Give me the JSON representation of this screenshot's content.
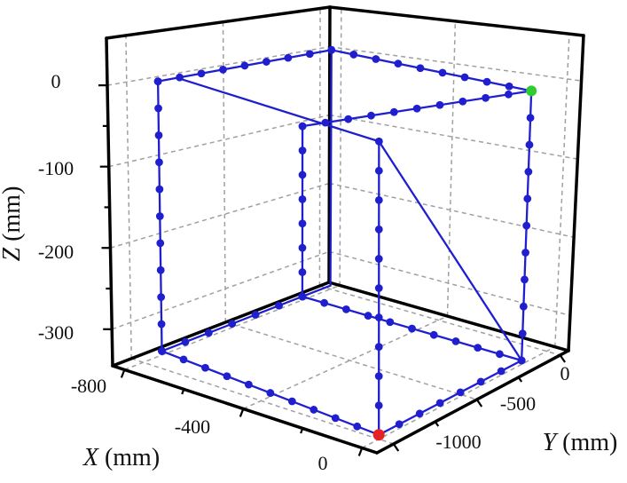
{
  "figure": {
    "background": "#ffffff",
    "kind": "3D trajectory measurement plot"
  },
  "chart_data": {
    "type": "line3d-scatter",
    "title": "",
    "axes": {
      "x": {
        "label_letter": "X",
        "label_unit": " (mm)",
        "range": [
          -840,
          50
        ],
        "major_ticks": [
          -800,
          -400,
          0
        ],
        "minor_ticks": [
          -600,
          -200
        ],
        "tick_labels": [
          "-800",
          "-400",
          "0"
        ]
      },
      "y": {
        "label_letter": "Y",
        "label_unit": " (mm)",
        "range": [
          -1100,
          50
        ],
        "major_ticks": [
          -1000,
          -500,
          0
        ],
        "minor_ticks": [
          -750,
          -250
        ],
        "tick_labels": [
          "-1000",
          "-500",
          "0"
        ]
      },
      "z": {
        "label_letter": "Z",
        "label_unit": " (mm)",
        "range": [
          -345,
          58
        ],
        "major_ticks": [
          0,
          -100,
          -200,
          -300
        ],
        "minor_ticks": [
          -50,
          -150,
          -250
        ],
        "tick_labels": [
          "0",
          "-100",
          "-200",
          "-300"
        ]
      }
    },
    "grid": {
      "show": true,
      "color": "#a0a0a0"
    },
    "box_color": "#000000",
    "series": {
      "name": "measured-trajectory",
      "color": "#1f1fd0",
      "marker_radius": 4.4,
      "segments": [
        {
          "points": [
            [
              -800,
              -900,
              0
            ],
            [
              -800,
              0,
              0
            ]
          ],
          "markers": true,
          "spacing": 25
        },
        {
          "points": [
            [
              -800,
              0,
              0
            ],
            [
              0,
              -150,
              0
            ]
          ],
          "markers": true,
          "spacing": 25
        },
        {
          "points": [
            [
              0,
              -150,
              0
            ],
            [
              -800,
              -150,
              -100
            ]
          ],
          "markers": true,
          "spacing": 26
        },
        {
          "points": [
            [
              -800,
              -150,
              -100
            ],
            [
              -800,
              -150,
              -340
            ]
          ],
          "markers": true,
          "spacing": 28
        },
        {
          "points": [
            [
              -800,
              -150,
              -340
            ],
            [
              0,
              -150,
              -340
            ]
          ],
          "markers": true,
          "spacing": 27
        },
        {
          "points": [
            [
              0,
              -150,
              -340
            ],
            [
              0,
              -150,
              0
            ]
          ],
          "markers": true,
          "spacing": 31
        },
        {
          "points": [
            [
              -800,
              -900,
              0
            ],
            [
              -800,
              -900,
              -340
            ]
          ],
          "markers": true,
          "spacing": 31
        },
        {
          "points": [
            [
              -800,
              -900,
              -340
            ],
            [
              0,
              -1000,
              -340
            ]
          ],
          "markers": true,
          "spacing": 27
        },
        {
          "points": [
            [
              0,
              -1000,
              -340
            ],
            [
              0,
              -150,
              -340
            ]
          ],
          "markers": true,
          "spacing": 26
        },
        {
          "points": [
            [
              -800,
              -900,
              -340
            ],
            [
              -800,
              -150,
              -340
            ]
          ],
          "markers": true,
          "spacing": 27
        },
        {
          "points": [
            [
              0,
              -1000,
              -340
            ],
            [
              0,
              -1000,
              0
            ]
          ],
          "markers": true,
          "spacing": 34
        },
        {
          "points": [
            [
              -800,
              -800,
              0
            ],
            [
              0,
              -1000,
              0
            ]
          ],
          "markers": false
        },
        {
          "points": [
            [
              0,
              -1000,
              0
            ],
            [
              0,
              -150,
              -340
            ]
          ],
          "markers": false
        },
        {
          "points": [
            [
              -800,
              0,
              0
            ],
            [
              -800,
              0,
              -340
            ],
            [
              -800,
              -150,
              -340
            ]
          ],
          "markers": false
        }
      ]
    },
    "special_points": [
      {
        "name": "start-point",
        "color": "#2ecc2e",
        "xyz": [
          0,
          -150,
          0
        ],
        "radius": 6.0
      },
      {
        "name": "end-point",
        "color": "#e62222",
        "xyz": [
          0,
          -1000,
          -340
        ],
        "radius": 6.5
      }
    ]
  }
}
